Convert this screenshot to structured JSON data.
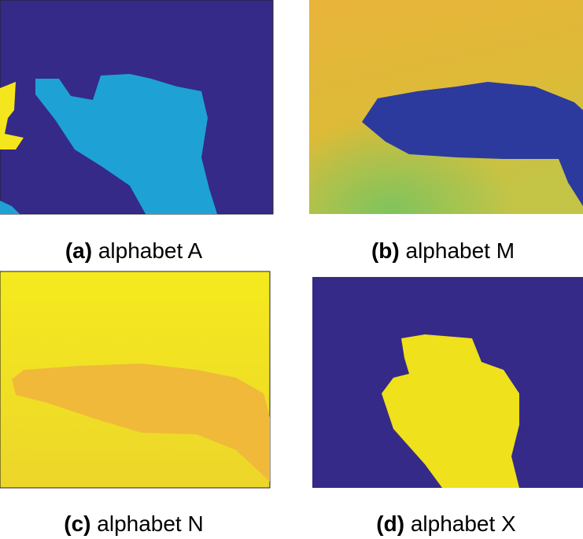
{
  "panels": [
    {
      "label": "(a)",
      "caption": "alphabet A"
    },
    {
      "label": "(b)",
      "caption": "alphabet M"
    },
    {
      "label": "(c)",
      "caption": "alphabet N"
    },
    {
      "label": "(d)",
      "caption": "alphabet X"
    }
  ]
}
